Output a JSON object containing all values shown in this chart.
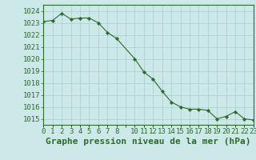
{
  "x": [
    0,
    1,
    2,
    3,
    4,
    5,
    6,
    7,
    8,
    10,
    11,
    12,
    13,
    14,
    15,
    16,
    17,
    18,
    19,
    20,
    21,
    22,
    23
  ],
  "y": [
    1023.1,
    1023.2,
    1023.8,
    1023.3,
    1023.4,
    1023.4,
    1023.0,
    1022.2,
    1021.7,
    1020.0,
    1018.9,
    1018.3,
    1017.3,
    1016.4,
    1016.0,
    1015.8,
    1015.8,
    1015.7,
    1015.0,
    1015.2,
    1015.6,
    1015.0,
    1014.9
  ],
  "line_color": "#2d6a2d",
  "marker_color": "#2d6a2d",
  "bg_color": "#cce8e8",
  "grid_color": "#aacece",
  "tick_color": "#2d6a2d",
  "label_color": "#2d6a2d",
  "title": "Graphe pression niveau de la mer (hPa)",
  "ylim": [
    1014.5,
    1024.5
  ],
  "yticks": [
    1015,
    1016,
    1017,
    1018,
    1019,
    1020,
    1021,
    1022,
    1023,
    1024
  ],
  "title_fontsize": 8,
  "tick_fontsize": 6.5
}
